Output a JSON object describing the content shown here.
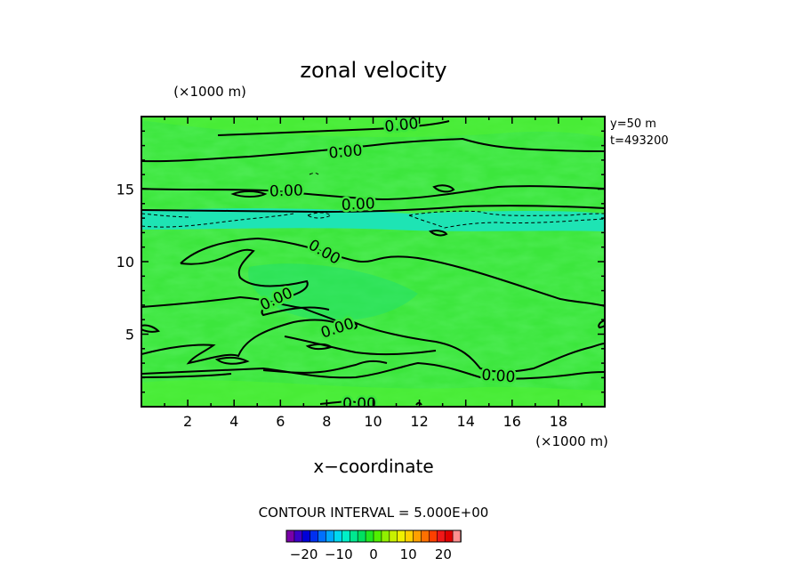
{
  "chart_data": {
    "type": "heatmap",
    "title": "zonal velocity",
    "xlabel": "x−coordinate",
    "x_unit": "(×1000 m)",
    "y_unit": "(×1000 m)",
    "xlim": [
      0,
      20
    ],
    "ylim": [
      0,
      20
    ],
    "x_ticks": [
      2,
      4,
      6,
      8,
      10,
      12,
      14,
      16,
      18
    ],
    "y_ticks": [
      5,
      10,
      15
    ],
    "info_lines": [
      "y=50  m",
      "t=493200"
    ],
    "contour_interval_text": "CONTOUR INTERVAL = 5.000E+00",
    "contour_labels": [
      "0.00",
      "0.00",
      "0.00",
      "0.00",
      "0.00",
      "0.00",
      "0.00",
      "0.00",
      "0.00"
    ],
    "colorbar": {
      "ticks": [
        -20,
        -10,
        0,
        10,
        20
      ],
      "range": [
        -25,
        25
      ],
      "colors": [
        "#7a00a8",
        "#3c00c8",
        "#0000d8",
        "#0030f0",
        "#0070ff",
        "#00a8ff",
        "#00d8f0",
        "#00f0c8",
        "#00e890",
        "#00e060",
        "#20e820",
        "#50f000",
        "#90f000",
        "#c8f000",
        "#f0f000",
        "#ffd000",
        "#ffa000",
        "#ff7000",
        "#ff4000",
        "#f01818",
        "#e00000",
        "#ff9090"
      ]
    },
    "field_colors": {
      "background": "#3ce63c",
      "light": "#50f032",
      "cool": "#22e06c",
      "cyan_band": "#1ee4b4"
    },
    "grid": false
  }
}
